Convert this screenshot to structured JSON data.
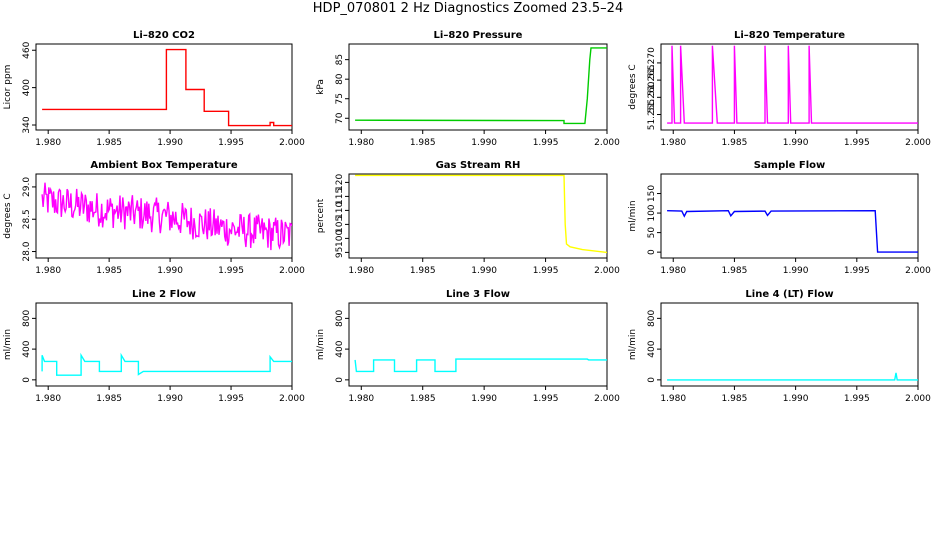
{
  "page_title": "HDP_070801  2 Hz Diagnostics Zoomed 23.5–24",
  "chart_data": [
    {
      "type": "line",
      "title": "Li–820 CO2",
      "ylabel": "Licor ppm",
      "color": "#ff0000",
      "xlim": [
        1.979,
        2.0
      ],
      "ylim": [
        332,
        470
      ],
      "x_ticks": [
        "1.980",
        "1.985",
        "1.990",
        "1.995",
        "2.000"
      ],
      "y_ticks": [
        "340",
        "400",
        "460"
      ],
      "y_tick_values": [
        340,
        400,
        460
      ],
      "series": [
        {
          "x": [
            1.9795,
            1.9897,
            1.9897,
            1.9913,
            1.9913,
            1.9928,
            1.9928,
            1.9948,
            1.9948,
            1.9982,
            1.9982,
            1.9985,
            1.9985,
            2.0
          ],
          "y": [
            365,
            365,
            461,
            461,
            397,
            397,
            362,
            362,
            339,
            339,
            344,
            344,
            339,
            339
          ]
        }
      ]
    },
    {
      "type": "line",
      "title": "Li–820 Pressure",
      "ylabel": "kPa",
      "color": "#00cc00",
      "xlim": [
        1.979,
        2.0
      ],
      "ylim": [
        67,
        89
      ],
      "x_ticks": [
        "1.980",
        "1.985",
        "1.990",
        "1.995",
        "2.000"
      ],
      "y_ticks": [
        "70",
        "75",
        "80",
        "85"
      ],
      "y_tick_values": [
        70,
        75,
        80,
        85
      ],
      "series": [
        {
          "x": [
            1.9795,
            1.9965,
            1.9965,
            1.9982,
            1.9984,
            1.9986,
            1.9987,
            2.0
          ],
          "y": [
            69.5,
            69.4,
            68.7,
            68.7,
            75,
            85,
            88,
            88
          ]
        }
      ]
    },
    {
      "type": "line",
      "title": "Li–820 Temperature",
      "ylabel": "degrees C",
      "color": "#ff00ff",
      "xlim": [
        1.979,
        2.0
      ],
      "ylim": [
        51.2505,
        51.2755
      ],
      "x_ticks": [
        "1.980",
        "1.985",
        "1.990",
        "1.995",
        "2.000"
      ],
      "y_ticks": [
        "51.255",
        "51.260",
        "51.265",
        "51.270"
      ],
      "y_tick_values": [
        51.255,
        51.26,
        51.265,
        51.27
      ],
      "series": [
        {
          "x": [
            1.9795,
            1.9799,
            1.9799,
            1.9801,
            1.9801,
            1.9806,
            1.9806,
            1.9809,
            1.9809,
            1.9832,
            1.9832,
            1.9836,
            1.9836,
            1.985,
            1.985,
            1.9852,
            1.9852,
            1.9875,
            1.9875,
            1.9877,
            1.9877,
            1.9894,
            1.9894,
            1.9896,
            1.9896,
            1.9911,
            1.9911,
            1.9913,
            1.9913,
            2.0
          ],
          "y": [
            51.2525,
            51.2525,
            51.275,
            51.2525,
            51.2525,
            51.2525,
            51.275,
            51.2525,
            51.2525,
            51.2525,
            51.275,
            51.2525,
            51.2525,
            51.2525,
            51.275,
            51.2525,
            51.2525,
            51.2525,
            51.275,
            51.2525,
            51.2525,
            51.2525,
            51.275,
            51.2525,
            51.2525,
            51.2525,
            51.275,
            51.2525,
            51.2525,
            51.2525
          ]
        }
      ]
    },
    {
      "type": "line",
      "title": "Ambient Box Temperature",
      "ylabel": "degrees C",
      "color": "#ff00ff",
      "xlim": [
        1.979,
        2.0
      ],
      "ylim": [
        27.9,
        29.2
      ],
      "x_ticks": [
        "1.980",
        "1.985",
        "1.990",
        "1.995",
        "2.000"
      ],
      "y_ticks": [
        "28.0",
        "28.5",
        "29.0"
      ],
      "y_tick_values": [
        28.0,
        28.5,
        29.0
      ],
      "series": [
        {
          "x": [
            1.9795,
            1.9842,
            1.9895,
            1.9947,
            2.0
          ],
          "y": [
            28.8,
            28.65,
            28.55,
            28.35,
            28.25
          ]
        }
      ]
    },
    {
      "type": "line",
      "title": "Gas Stream RH",
      "ylabel": "percent",
      "color": "#ffff00",
      "xlim": [
        1.979,
        2.0
      ],
      "ylim": [
        93,
        123
      ],
      "x_ticks": [
        "1.980",
        "1.985",
        "1.990",
        "1.995",
        "2.000"
      ],
      "y_ticks": [
        "95",
        "100",
        "105",
        "110",
        "115",
        "120"
      ],
      "y_tick_values": [
        95,
        100,
        105,
        110,
        115,
        120
      ],
      "series": [
        {
          "x": [
            1.9795,
            1.9965,
            1.9966,
            1.9967,
            1.997,
            1.998,
            2.0
          ],
          "y": [
            122.5,
            122.5,
            105,
            98,
            97,
            96,
            95
          ]
        }
      ]
    },
    {
      "type": "line",
      "title": "Sample Flow",
      "ylabel": "ml/min",
      "color": "#0000ff",
      "xlim": [
        1.979,
        2.0
      ],
      "ylim": [
        -15,
        200
      ],
      "x_ticks": [
        "1.980",
        "1.985",
        "1.990",
        "1.995",
        "2.000"
      ],
      "y_ticks": [
        "0",
        "50",
        "100",
        "150"
      ],
      "y_tick_values": [
        0,
        50,
        100,
        150
      ],
      "series": [
        {
          "x": [
            1.9795,
            1.9807,
            1.9809,
            1.9811,
            1.9845,
            1.9847,
            1.985,
            1.9875,
            1.9877,
            1.988,
            1.9965,
            1.9967,
            2.0
          ],
          "y": [
            106,
            105,
            92,
            104,
            106,
            93,
            104,
            105,
            94,
            105,
            106,
            0,
            0
          ]
        }
      ]
    },
    {
      "type": "line",
      "title": "Line 2 Flow",
      "ylabel": "ml/min",
      "color": "#00ffff",
      "xlim": [
        1.979,
        2.0
      ],
      "ylim": [
        -80,
        1000
      ],
      "x_ticks": [
        "1.980",
        "1.985",
        "1.990",
        "1.995",
        "2.000"
      ],
      "y_ticks": [
        "0",
        "400",
        "800"
      ],
      "y_tick_values": [
        0,
        400,
        800
      ],
      "series": [
        {
          "x": [
            1.9795,
            1.9795,
            1.9797,
            1.9807,
            1.9807,
            1.9827,
            1.9827,
            1.983,
            1.9842,
            1.9842,
            1.986,
            1.986,
            1.9863,
            1.9874,
            1.9874,
            1.9878,
            1.9982,
            1.9982,
            1.9985,
            2.0
          ],
          "y": [
            110,
            320,
            240,
            240,
            60,
            60,
            320,
            240,
            240,
            110,
            110,
            320,
            240,
            240,
            70,
            110,
            110,
            300,
            240,
            240
          ]
        }
      ]
    },
    {
      "type": "line",
      "title": "Line 3 Flow",
      "ylabel": "ml/min",
      "color": "#00ffff",
      "xlim": [
        1.979,
        2.0
      ],
      "ylim": [
        -80,
        1000
      ],
      "x_ticks": [
        "1.980",
        "1.985",
        "1.990",
        "1.995",
        "2.000"
      ],
      "y_ticks": [
        "0",
        "400",
        "800"
      ],
      "y_tick_values": [
        0,
        400,
        800
      ],
      "series": [
        {
          "x": [
            1.9795,
            1.9795,
            1.9796,
            1.981,
            1.981,
            1.9827,
            1.9827,
            1.9845,
            1.9845,
            1.986,
            1.986,
            1.9877,
            1.9877,
            1.9984,
            1.9985,
            2.0
          ],
          "y": [
            260,
            260,
            110,
            110,
            260,
            260,
            110,
            110,
            260,
            260,
            110,
            110,
            270,
            270,
            260,
            260
          ]
        }
      ]
    },
    {
      "type": "line",
      "title": "Line 4 (LT) Flow",
      "ylabel": "ml/min",
      "color": "#00ffff",
      "xlim": [
        1.979,
        2.0
      ],
      "ylim": [
        -80,
        1000
      ],
      "x_ticks": [
        "1.980",
        "1.985",
        "1.990",
        "1.995",
        "2.000"
      ],
      "y_ticks": [
        "0",
        "400",
        "800"
      ],
      "y_tick_values": [
        0,
        400,
        800
      ],
      "series": [
        {
          "x": [
            1.9795,
            1.9981,
            1.9982,
            1.9983,
            1.9984,
            2.0
          ],
          "y": [
            0,
            0,
            90,
            0,
            0,
            0
          ]
        }
      ]
    }
  ]
}
